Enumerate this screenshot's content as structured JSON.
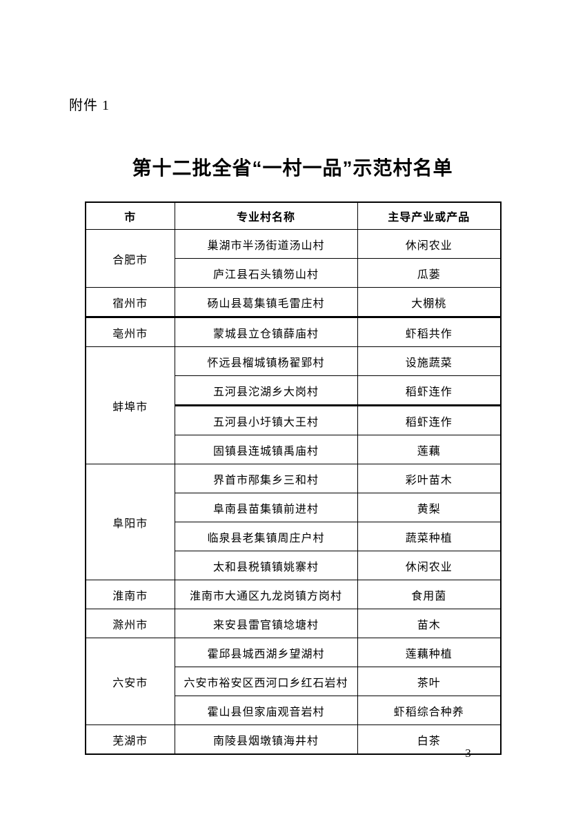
{
  "page": {
    "attachment_label": "附件 1",
    "title": "第十二批全省“一村一品”示范村名单",
    "page_number": "— 3 —"
  },
  "table": {
    "columns": [
      "市",
      "专业村名称",
      "主导产业或产品"
    ],
    "groups": [
      {
        "city": "合肥市",
        "villages": [
          {
            "name": "巢湖市半汤街道汤山村",
            "product": "休闲农业"
          },
          {
            "name": "庐江县石头镇笏山村",
            "product": "瓜蒌"
          }
        ]
      },
      {
        "city": "宿州市",
        "villages": [
          {
            "name": "砀山县葛集镇毛雷庄村",
            "product": "大棚桃",
            "thick_bottom": true
          }
        ]
      },
      {
        "city": "亳州市",
        "villages": [
          {
            "name": "蒙城县立仓镇薛庙村",
            "product": "虾稻共作"
          }
        ]
      },
      {
        "city": "蚌埠市",
        "villages": [
          {
            "name": "怀远县榴城镇杨翟郢村",
            "product": "设施蔬菜"
          },
          {
            "name": "五河县沱湖乡大岗村",
            "product": "稻虾连作",
            "thick_bottom": true
          },
          {
            "name": "五河县小圩镇大王村",
            "product": "稻虾连作"
          },
          {
            "name": "固镇县连城镇禹庙村",
            "product": "莲藕"
          }
        ]
      },
      {
        "city": "阜阳市",
        "villages": [
          {
            "name": "界首市邴集乡三和村",
            "product": "彩叶苗木"
          },
          {
            "name": "阜南县苗集镇前进村",
            "product": "黄梨"
          },
          {
            "name": "临泉县老集镇周庄户村",
            "product": "蔬菜种植"
          },
          {
            "name": "太和县税镇镇姚寨村",
            "product": "休闲农业"
          }
        ]
      },
      {
        "city": "淮南市",
        "villages": [
          {
            "name": "淮南市大通区九龙岗镇方岗村",
            "product": "食用菌"
          }
        ]
      },
      {
        "city": "滁州市",
        "villages": [
          {
            "name": "来安县雷官镇埝塘村",
            "product": "苗木"
          }
        ]
      },
      {
        "city": "六安市",
        "villages": [
          {
            "name": "霍邱县城西湖乡望湖村",
            "product": "莲藕种植"
          },
          {
            "name": "六安市裕安区西河口乡红石岩村",
            "product": "茶叶"
          },
          {
            "name": "霍山县但家庙观音岩村",
            "product": "虾稻综合种养"
          }
        ]
      },
      {
        "city": "芜湖市",
        "villages": [
          {
            "name": "南陵县烟墩镇海井村",
            "product": "白茶"
          }
        ]
      }
    ]
  }
}
